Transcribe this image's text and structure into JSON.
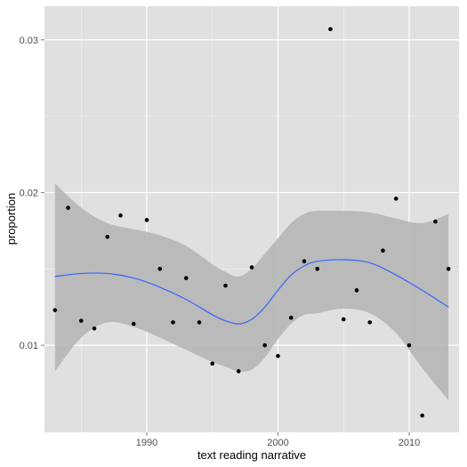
{
  "chart_data": {
    "type": "scatter",
    "title": "",
    "xlabel": "text reading narrative",
    "ylabel": "proportion",
    "xlim": [
      1982.2,
      2013.8
    ],
    "ylim": [
      0.0043,
      0.0322
    ],
    "x_ticks": [
      1990,
      2000,
      2010
    ],
    "x_tick_labels": [
      "1990",
      "2000",
      "2010"
    ],
    "y_ticks": [
      0.01,
      0.02,
      0.03
    ],
    "y_tick_labels": [
      "0.01",
      "0.02",
      "0.03"
    ],
    "grid": true,
    "colors": {
      "panel": "#e0e0e0",
      "grid": "#ffffff",
      "points": "#000000",
      "smooth_line": "#3366ff",
      "ribbon": "#b3b3b3"
    },
    "points": [
      {
        "x": 1983,
        "y": 0.0123
      },
      {
        "x": 1984,
        "y": 0.019
      },
      {
        "x": 1985,
        "y": 0.0116
      },
      {
        "x": 1986,
        "y": 0.0111
      },
      {
        "x": 1987,
        "y": 0.0171
      },
      {
        "x": 1988,
        "y": 0.0185
      },
      {
        "x": 1989,
        "y": 0.0114
      },
      {
        "x": 1990,
        "y": 0.0182
      },
      {
        "x": 1991,
        "y": 0.015
      },
      {
        "x": 1992,
        "y": 0.0115
      },
      {
        "x": 1993,
        "y": 0.0144
      },
      {
        "x": 1994,
        "y": 0.0115
      },
      {
        "x": 1995,
        "y": 0.0088
      },
      {
        "x": 1996,
        "y": 0.0139
      },
      {
        "x": 1997,
        "y": 0.0083
      },
      {
        "x": 1998,
        "y": 0.0151
      },
      {
        "x": 1999,
        "y": 0.01
      },
      {
        "x": 2000,
        "y": 0.0093
      },
      {
        "x": 2001,
        "y": 0.0118
      },
      {
        "x": 2002,
        "y": 0.0155
      },
      {
        "x": 2003,
        "y": 0.015
      },
      {
        "x": 2004,
        "y": 0.0307
      },
      {
        "x": 2005,
        "y": 0.0117
      },
      {
        "x": 2006,
        "y": 0.0136
      },
      {
        "x": 2007,
        "y": 0.0115
      },
      {
        "x": 2008,
        "y": 0.0162
      },
      {
        "x": 2009,
        "y": 0.0196
      },
      {
        "x": 2010,
        "y": 0.01
      },
      {
        "x": 2011,
        "y": 0.0054
      },
      {
        "x": 2012,
        "y": 0.0181
      },
      {
        "x": 2013,
        "y": 0.015
      }
    ],
    "smooth": {
      "x": [
        1983,
        1985,
        1987,
        1989,
        1991,
        1993,
        1995,
        1996,
        1997,
        1998,
        1999,
        2000,
        2001,
        2002,
        2003,
        2005,
        2007,
        2009,
        2011,
        2013
      ],
      "y": [
        0.0145,
        0.0147,
        0.0147,
        0.0144,
        0.0138,
        0.013,
        0.012,
        0.0116,
        0.0114,
        0.0117,
        0.0125,
        0.0136,
        0.0146,
        0.0152,
        0.0155,
        0.0156,
        0.0154,
        0.0146,
        0.0136,
        0.0125
      ],
      "lower": [
        0.0083,
        0.0105,
        0.0115,
        0.0112,
        0.0105,
        0.0097,
        0.0089,
        0.0086,
        0.0083,
        0.0084,
        0.0092,
        0.0104,
        0.0114,
        0.012,
        0.0121,
        0.0124,
        0.0121,
        0.0108,
        0.0085,
        0.0064
      ],
      "upper": [
        0.0206,
        0.019,
        0.018,
        0.0176,
        0.0172,
        0.0165,
        0.0153,
        0.0148,
        0.0145,
        0.015,
        0.016,
        0.017,
        0.018,
        0.0186,
        0.0188,
        0.0188,
        0.0187,
        0.0183,
        0.018,
        0.0186
      ]
    }
  }
}
